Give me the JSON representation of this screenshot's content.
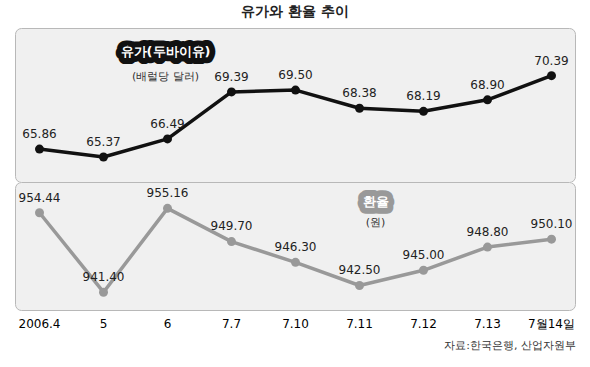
{
  "chart_data": [
    {
      "type": "line",
      "title": "유가와 환율 추이",
      "categories": [
        "2006.4",
        "5",
        "6",
        "7.7",
        "7.10",
        "7.11",
        "7.12",
        "7.13",
        "7월14일"
      ],
      "series": [
        {
          "name": "유가(두바이유)",
          "color": "#111111",
          "marker": "circle",
          "values": [
            65.86,
            65.37,
            66.49,
            69.39,
            69.5,
            68.38,
            68.19,
            68.9,
            70.39
          ],
          "value_labels": [
            "65.86",
            "65.37",
            "66.49",
            "69.39",
            "69.50",
            "68.38",
            "68.19",
            "68.90",
            "70.39"
          ]
        }
      ],
      "ylabel": "(배럴당 달러)",
      "ylim": [
        63.8,
        73.3
      ],
      "yticks": [],
      "tick_labels": false,
      "data_labels": true
    },
    {
      "type": "line",
      "categories": [
        "2006.4",
        "5",
        "6",
        "7.7",
        "7.10",
        "7.11",
        "7.12",
        "7.13",
        "7월14일"
      ],
      "series": [
        {
          "name": "환율",
          "color": "#999999",
          "marker": "circle",
          "values": [
            954.44,
            941.4,
            955.16,
            949.7,
            946.3,
            942.5,
            945.0,
            948.8,
            950.1
          ],
          "value_labels": [
            "954.44",
            "941.40",
            "955.16",
            "949.70",
            "946.30",
            "942.50",
            "945.00",
            "948.80",
            "950.10"
          ]
        }
      ],
      "ylabel": "(원)",
      "ylim": [
        938.4,
        959.4
      ],
      "yticks": [],
      "tick_labels": "x",
      "data_labels": true,
      "source": "자료:한국은행, 산업자원부"
    }
  ]
}
